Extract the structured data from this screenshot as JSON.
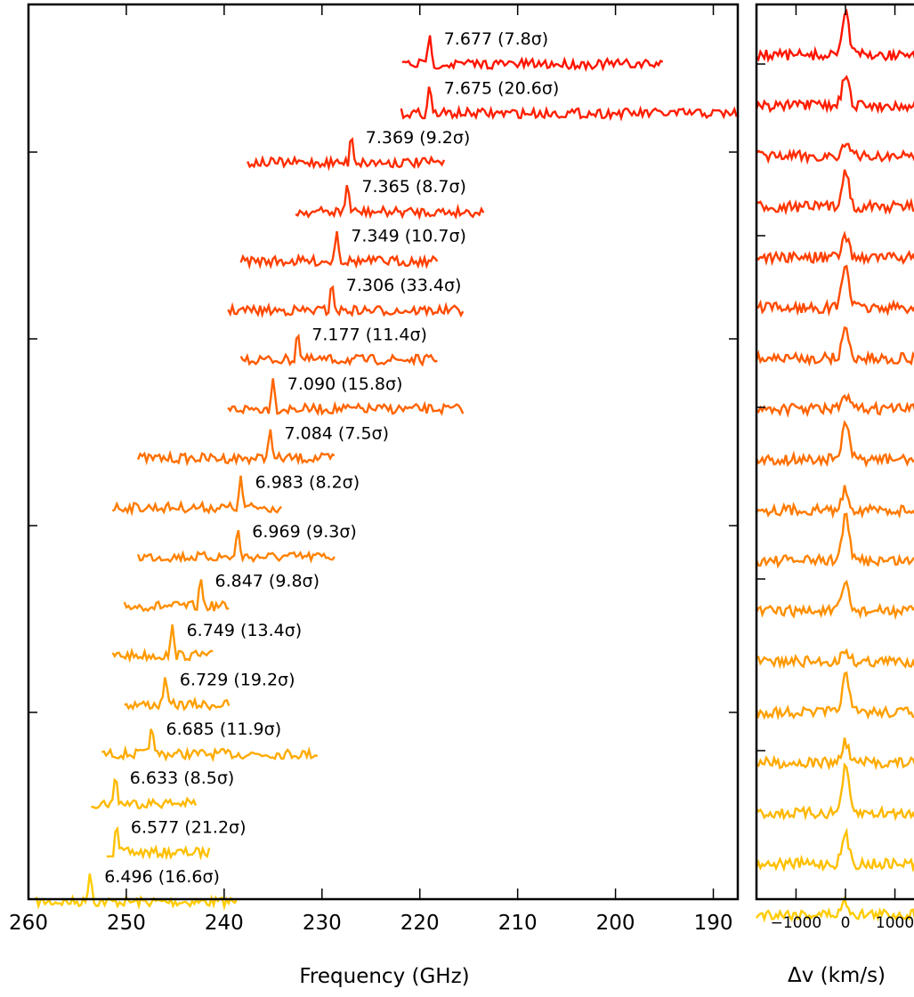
{
  "chart_data": [
    {
      "type": "line",
      "panel": "left",
      "xlabel": "Frequency (GHz)",
      "ylabel": "",
      "title": "",
      "xlim": [
        260,
        187.5
      ],
      "x_reversed": true,
      "xticks": [
        260,
        250,
        240,
        230,
        220,
        210,
        200,
        190
      ],
      "ytick_count": 4,
      "series": [
        {
          "label": "6.496 (16.6σ)",
          "color": "#ffcc00",
          "x_range": [
            259.2,
            238.5
          ],
          "line_ghz": 253.7
        },
        {
          "label": "6.577 (21.2σ)",
          "color": "#ffc000",
          "x_range": [
            252.0,
            241.5
          ],
          "line_ghz": 251.0
        },
        {
          "label": "6.633 (8.5σ)",
          "color": "#ffb800",
          "x_range": [
            253.6,
            242.9
          ],
          "line_ghz": 251.1
        },
        {
          "label": "6.685 (11.9σ)",
          "color": "#ffab00",
          "x_range": [
            252.5,
            230.3
          ],
          "line_ghz": 247.4
        },
        {
          "label": "6.729 (19.2σ)",
          "color": "#ffa000",
          "x_range": [
            250.2,
            239.3
          ],
          "line_ghz": 246.0
        },
        {
          "label": "6.749 (13.4σ)",
          "color": "#ff9a00",
          "x_range": [
            251.4,
            241.0
          ],
          "line_ghz": 245.3
        },
        {
          "label": "6.847 (9.8σ)",
          "color": "#ff8f00",
          "x_range": [
            250.2,
            239.3
          ],
          "line_ghz": 242.4
        },
        {
          "label": "6.969 (9.3σ)",
          "color": "#ff8200",
          "x_range": [
            248.8,
            228.5
          ],
          "line_ghz": 238.6
        },
        {
          "label": "6.983 (8.2σ)",
          "color": "#ff7b00",
          "x_range": [
            251.4,
            234.0
          ],
          "line_ghz": 238.3
        },
        {
          "label": "7.084 (7.5σ)",
          "color": "#ff6f00",
          "x_range": [
            248.8,
            228.5
          ],
          "line_ghz": 235.3
        },
        {
          "label": "7.090 (15.8σ)",
          "color": "#ff6400",
          "x_range": [
            239.6,
            215.4
          ],
          "line_ghz": 235.0
        },
        {
          "label": "7.177 (11.4σ)",
          "color": "#ff5a00",
          "x_range": [
            238.3,
            218.0
          ],
          "line_ghz": 232.5
        },
        {
          "label": "7.306 (33.4σ)",
          "color": "#ff4a00",
          "x_range": [
            239.6,
            215.4
          ],
          "line_ghz": 229.0
        },
        {
          "label": "7.349 (10.7σ)",
          "color": "#ff4000",
          "x_range": [
            238.3,
            218.0
          ],
          "line_ghz": 228.5
        },
        {
          "label": "7.365 (8.7σ)",
          "color": "#ff3500",
          "x_range": [
            232.7,
            213.3
          ],
          "line_ghz": 227.4
        },
        {
          "label": "7.369 (9.2σ)",
          "color": "#ff2c00",
          "x_range": [
            237.6,
            217.3
          ],
          "line_ghz": 227.0
        },
        {
          "label": "7.675 (20.6σ)",
          "color": "#ff1e00",
          "x_range": [
            221.9,
            187.6
          ],
          "line_ghz": 219.0
        },
        {
          "label": "7.677 (7.8σ)",
          "color": "#ff1400",
          "x_range": [
            221.8,
            195.0
          ],
          "line_ghz": 219.0
        }
      ]
    },
    {
      "type": "line",
      "panel": "right",
      "xlabel": "Δv (km/s)",
      "ylabel": "",
      "title": "",
      "xlim": [
        -1800,
        1800
      ],
      "xticks": [
        -1000,
        0,
        1000
      ],
      "xtick_labels": [
        "−1000",
        "0",
        "1000"
      ],
      "ytick_count": 5,
      "series_count": 18,
      "line_velocity": 0
    }
  ]
}
